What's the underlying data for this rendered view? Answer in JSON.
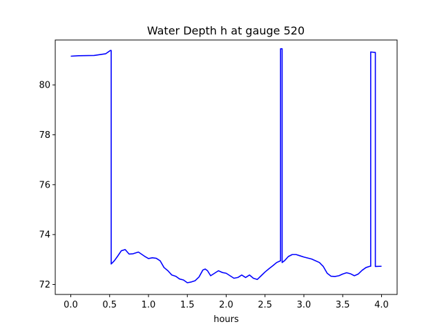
{
  "chart_data": {
    "type": "line",
    "title": "Water Depth h at gauge 520",
    "xlabel": "hours",
    "ylabel": "",
    "xlim": [
      -0.2,
      4.2
    ],
    "ylim": [
      71.6,
      81.8
    ],
    "grid": false,
    "legend": "none",
    "x_ticks": [
      0.0,
      0.5,
      1.0,
      1.5,
      2.0,
      2.5,
      3.0,
      3.5,
      4.0
    ],
    "x_tick_labels": [
      "0.0",
      "0.5",
      "1.0",
      "1.5",
      "2.0",
      "2.5",
      "3.0",
      "3.5",
      "4.0"
    ],
    "y_ticks": [
      72,
      74,
      76,
      78,
      80
    ],
    "y_tick_labels": [
      "72",
      "74",
      "76",
      "78",
      "80"
    ],
    "series": [
      {
        "color": "#0000ff",
        "x": [
          0.0,
          0.1,
          0.3,
          0.45,
          0.51,
          0.52,
          0.52,
          0.56,
          0.6,
          0.65,
          0.7,
          0.75,
          0.8,
          0.87,
          0.95,
          1.0,
          1.05,
          1.1,
          1.15,
          1.2,
          1.25,
          1.3,
          1.35,
          1.4,
          1.45,
          1.5,
          1.55,
          1.6,
          1.65,
          1.7,
          1.73,
          1.76,
          1.8,
          1.85,
          1.9,
          1.95,
          2.0,
          2.05,
          2.1,
          2.15,
          2.2,
          2.25,
          2.3,
          2.35,
          2.4,
          2.45,
          2.5,
          2.55,
          2.6,
          2.65,
          2.7,
          2.7,
          2.72,
          2.72,
          2.75,
          2.8,
          2.85,
          2.9,
          2.95,
          3.0,
          3.1,
          3.2,
          3.25,
          3.3,
          3.35,
          3.4,
          3.45,
          3.5,
          3.55,
          3.6,
          3.65,
          3.7,
          3.75,
          3.8,
          3.85,
          3.86,
          3.86,
          3.92,
          3.92,
          4.0
        ],
        "y": [
          81.15,
          81.17,
          81.18,
          81.25,
          81.38,
          81.38,
          72.82,
          72.95,
          73.12,
          73.35,
          73.4,
          73.22,
          73.23,
          73.3,
          73.13,
          73.04,
          73.07,
          73.05,
          72.95,
          72.68,
          72.55,
          72.38,
          72.33,
          72.22,
          72.18,
          72.07,
          72.1,
          72.15,
          72.3,
          72.58,
          72.62,
          72.55,
          72.35,
          72.45,
          72.55,
          72.48,
          72.45,
          72.35,
          72.25,
          72.28,
          72.38,
          72.28,
          72.38,
          72.25,
          72.2,
          72.35,
          72.5,
          72.63,
          72.75,
          72.88,
          72.95,
          81.45,
          81.45,
          72.88,
          72.95,
          73.12,
          73.2,
          73.2,
          73.15,
          73.1,
          73.02,
          72.88,
          72.72,
          72.45,
          72.33,
          72.32,
          72.35,
          72.42,
          72.47,
          72.43,
          72.35,
          72.42,
          72.57,
          72.68,
          72.73,
          72.73,
          81.32,
          81.3,
          72.72,
          72.73
        ]
      }
    ]
  }
}
